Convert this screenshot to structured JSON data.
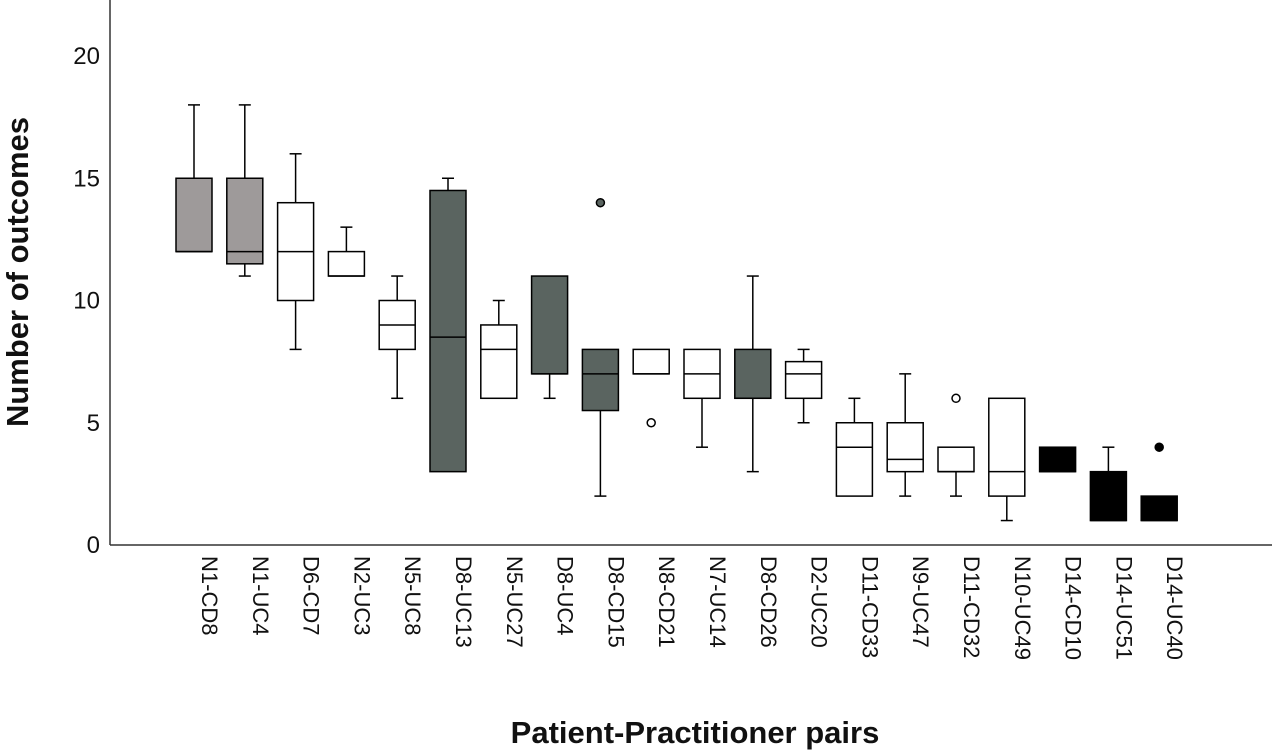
{
  "chart_data": {
    "type": "boxplot",
    "xlabel": "Patient-Practitioner pairs",
    "ylabel": "Number of outcomes",
    "ylim": [
      0,
      22
    ],
    "yticks": [
      0,
      5,
      10,
      15,
      20
    ],
    "grid": false,
    "colors": {
      "light_gray": "#9e9a9a",
      "dark_gray": "#5a6460",
      "white": "#ffffff",
      "black": "#000000",
      "stroke": "#000000"
    },
    "categories": [
      "N1-CD8",
      "N1-UC4",
      "D6-CD7",
      "N2-UC3",
      "N5-UC8",
      "D8-UC13",
      "N5-UC27",
      "D8-UC4",
      "D8-CD15",
      "N8-CD21",
      "N7-UC14",
      "D8-CD26",
      "D2-UC20",
      "D11-CD33",
      "N9-UC47",
      "D11-CD32",
      "N10-UC49",
      "D14-CD10",
      "D14-UC51",
      "D14-UC40"
    ],
    "boxes": [
      {
        "label": "N1-CD8",
        "fill": "light_gray",
        "min": 12,
        "q1": 12,
        "median": 12,
        "q3": 15,
        "max": 18,
        "outliers": []
      },
      {
        "label": "N1-UC4",
        "fill": "light_gray",
        "min": 11,
        "q1": 11.5,
        "median": 12,
        "q3": 15,
        "max": 18,
        "outliers": []
      },
      {
        "label": "D6-CD7",
        "fill": "white",
        "min": 8,
        "q1": 10,
        "median": 12,
        "q3": 14,
        "max": 16,
        "outliers": []
      },
      {
        "label": "N2-UC3",
        "fill": "white",
        "min": 11,
        "q1": 11,
        "median": 11,
        "q3": 12,
        "max": 13,
        "outliers": []
      },
      {
        "label": "N5-UC8",
        "fill": "white",
        "min": 6,
        "q1": 8,
        "median": 9,
        "q3": 10,
        "max": 11,
        "outliers": []
      },
      {
        "label": "D8-UC13",
        "fill": "dark_gray",
        "min": 3,
        "q1": 3,
        "median": 8.5,
        "q3": 14.5,
        "max": 15,
        "outliers": []
      },
      {
        "label": "N5-UC27",
        "fill": "white",
        "min": 6,
        "q1": 6,
        "median": 8,
        "q3": 9,
        "max": 10,
        "outliers": []
      },
      {
        "label": "D8-UC4",
        "fill": "dark_gray",
        "min": 6,
        "q1": 7,
        "median": 7,
        "q3": 11,
        "max": 11,
        "outliers": []
      },
      {
        "label": "D8-CD15",
        "fill": "dark_gray",
        "min": 2,
        "q1": 5.5,
        "median": 7,
        "q3": 8,
        "max": 8,
        "outliers": [
          14
        ]
      },
      {
        "label": "N8-CD21",
        "fill": "white",
        "min": 7,
        "q1": 7,
        "median": 7,
        "q3": 8,
        "max": 8,
        "outliers": [
          5
        ]
      },
      {
        "label": "N7-UC14",
        "fill": "white",
        "min": 4,
        "q1": 6,
        "median": 7,
        "q3": 8,
        "max": 8,
        "outliers": []
      },
      {
        "label": "D8-CD26",
        "fill": "dark_gray",
        "min": 3,
        "q1": 6,
        "median": 6,
        "q3": 8,
        "max": 11,
        "outliers": []
      },
      {
        "label": "D2-UC20",
        "fill": "white",
        "min": 5,
        "q1": 6,
        "median": 7,
        "q3": 7.5,
        "max": 8,
        "outliers": []
      },
      {
        "label": "D11-CD33",
        "fill": "white",
        "min": 2,
        "q1": 2,
        "median": 4,
        "q3": 5,
        "max": 6,
        "outliers": []
      },
      {
        "label": "N9-UC47",
        "fill": "white",
        "min": 2,
        "q1": 3,
        "median": 3.5,
        "q3": 5,
        "max": 7,
        "outliers": []
      },
      {
        "label": "D11-CD32",
        "fill": "white",
        "min": 2,
        "q1": 3,
        "median": 3,
        "q3": 4,
        "max": 4,
        "outliers": [
          6
        ]
      },
      {
        "label": "N10-UC49",
        "fill": "white",
        "min": 1,
        "q1": 2,
        "median": 3,
        "q3": 6,
        "max": 6,
        "outliers": []
      },
      {
        "label": "D14-CD10",
        "fill": "black",
        "min": 3,
        "q1": 3,
        "median": 3,
        "q3": 4,
        "max": 4,
        "outliers": []
      },
      {
        "label": "D14-UC51",
        "fill": "black",
        "min": 1,
        "q1": 1,
        "median": 1,
        "q3": 3,
        "max": 4,
        "outliers": []
      },
      {
        "label": "D14-UC40",
        "fill": "black",
        "min": 1,
        "q1": 1,
        "median": 1,
        "q3": 2,
        "max": 2,
        "outliers": [
          4
        ]
      }
    ]
  }
}
